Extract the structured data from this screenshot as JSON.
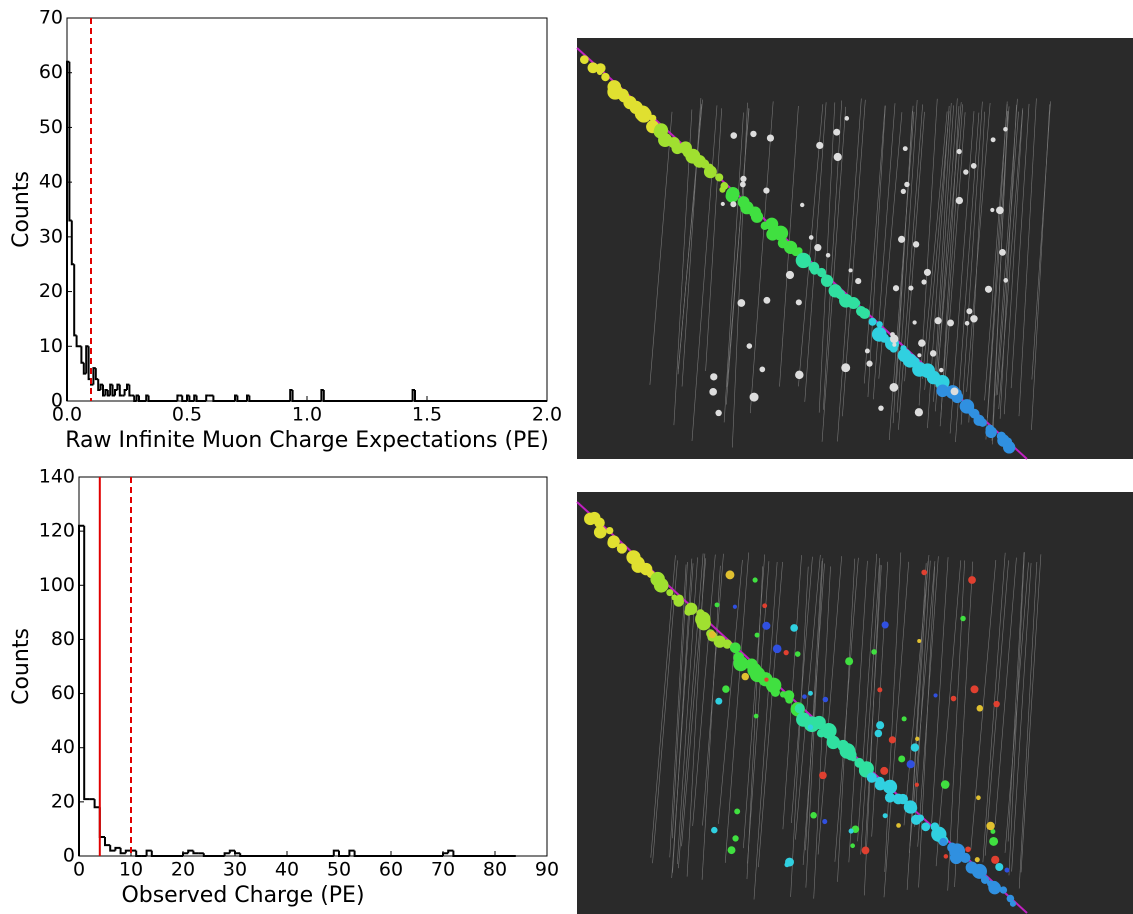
{
  "chart_data": [
    {
      "type": "histogram",
      "xlabel": "Raw Infinite Muon Charge Expectations (PE)",
      "ylabel": "Counts",
      "bins": [
        0,
        0.01,
        0.02,
        0.03,
        0.04,
        0.05,
        0.06,
        0.07,
        0.08,
        0.09,
        0.1,
        0.11,
        0.12,
        0.13,
        0.14,
        0.15,
        0.16,
        0.17,
        0.18,
        0.19,
        0.2,
        0.21,
        0.22,
        0.23,
        0.24,
        0.25,
        0.26,
        0.27,
        0.28,
        0.29,
        0.3,
        0.33,
        0.34,
        0.46,
        0.47,
        0.48,
        0.5,
        0.51,
        0.53,
        0.54,
        0.58,
        0.59,
        0.6,
        0.61,
        0.7,
        0.71,
        0.75,
        0.76,
        0.93,
        0.94,
        1.06,
        1.07,
        1.44,
        1.45,
        2.0
      ],
      "counts": [
        62,
        33,
        25,
        12,
        10,
        10,
        7,
        5,
        10,
        4,
        3,
        6,
        4,
        2,
        3,
        1,
        2,
        1,
        3,
        1,
        2,
        3,
        1,
        1,
        2,
        3,
        1,
        1,
        0,
        1,
        0,
        1,
        0,
        1,
        1,
        0,
        1,
        0,
        1,
        0,
        1,
        1,
        1,
        0,
        1,
        0,
        1,
        0,
        2,
        0,
        2,
        0,
        2,
        0
      ],
      "color": "#000000",
      "xlim": [
        0,
        2
      ],
      "ylim": [
        0,
        70
      ],
      "xticks": [
        {
          "value": 0,
          "label": "0.0"
        },
        {
          "value": 0.5,
          "label": "0.5"
        },
        {
          "value": 1,
          "label": "1.0"
        },
        {
          "value": 1.5,
          "label": "1.5"
        },
        {
          "value": 2,
          "label": "2.0"
        }
      ],
      "yticks": [
        0,
        10,
        20,
        30,
        40,
        50,
        60,
        70
      ],
      "vlines": [
        {
          "x": 0.1,
          "color": "#e00000",
          "dashed": true
        }
      ]
    },
    {
      "type": "histogram",
      "xlabel": "Observed Charge (PE)",
      "ylabel": "Counts",
      "bins": [
        0,
        1,
        2,
        3,
        4,
        5,
        6,
        7,
        8,
        9,
        10,
        11,
        12,
        13,
        14,
        20,
        21,
        22,
        23,
        24,
        28,
        29,
        30,
        31,
        49,
        50,
        52,
        53,
        70,
        71,
        72,
        84
      ],
      "counts": [
        122,
        21,
        21,
        18,
        7,
        4,
        2,
        3,
        1,
        2,
        2,
        0,
        0,
        2,
        0,
        1,
        2,
        1,
        1,
        0,
        1,
        2,
        1,
        0,
        2,
        0,
        2,
        0,
        1,
        2,
        0
      ],
      "color": "#000000",
      "xlim": [
        0,
        90
      ],
      "ylim": [
        0,
        140
      ],
      "xticks": [
        0,
        10,
        20,
        30,
        40,
        50,
        60,
        70,
        80,
        90
      ],
      "yticks": [
        0,
        20,
        40,
        60,
        80,
        100,
        120,
        140
      ],
      "vlines": [
        {
          "x": 4,
          "color": "#e00000",
          "dashed": false
        },
        {
          "x": 10,
          "color": "#e00000",
          "dashed": true
        }
      ]
    }
  ]
}
